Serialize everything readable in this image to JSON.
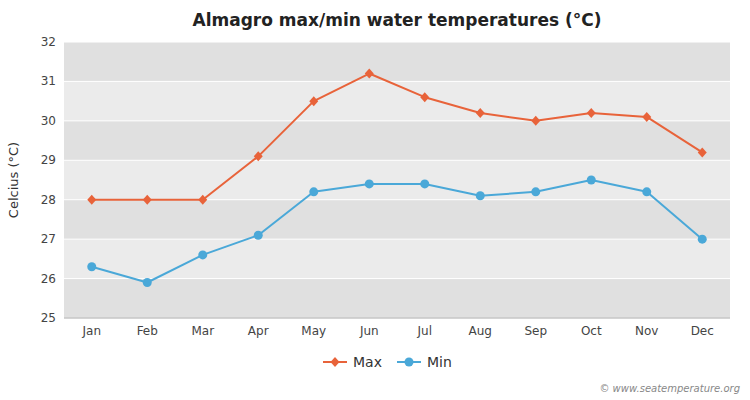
{
  "chart_data": {
    "type": "line",
    "title": "Almagro max/min water temperatures (°C)",
    "y_label": "Celcius (°C)",
    "categories": [
      "Jan",
      "Feb",
      "Mar",
      "Apr",
      "May",
      "Jun",
      "Jul",
      "Aug",
      "Sep",
      "Oct",
      "Nov",
      "Dec"
    ],
    "series": [
      {
        "name": "Max",
        "color": "#e8633a",
        "marker": "diamond",
        "values": [
          28.0,
          28.0,
          28.0,
          29.1,
          30.5,
          31.2,
          30.6,
          30.2,
          30.0,
          30.2,
          30.1,
          29.2
        ]
      },
      {
        "name": "Min",
        "color": "#4aa8d8",
        "marker": "circle",
        "values": [
          26.3,
          25.9,
          26.6,
          27.1,
          28.2,
          28.4,
          28.4,
          28.1,
          28.2,
          28.5,
          28.2,
          27.0
        ]
      }
    ],
    "ylim": [
      25,
      32
    ],
    "yticks": [
      25,
      26,
      27,
      28,
      29,
      30,
      31,
      32
    ],
    "grid": true,
    "legend": "bottom",
    "annotations": [
      "© www.seatemperature.org"
    ]
  }
}
